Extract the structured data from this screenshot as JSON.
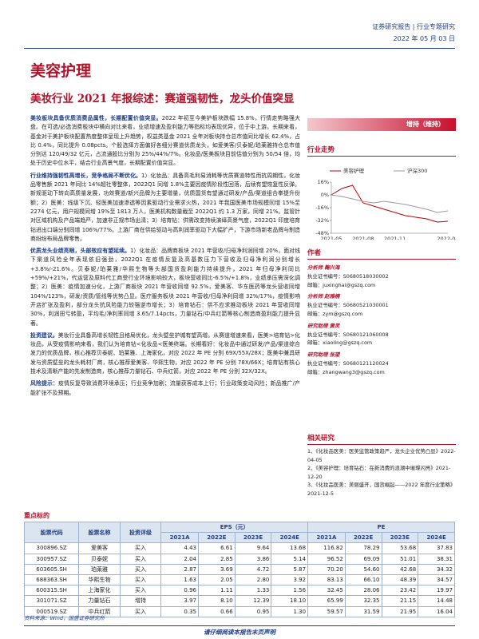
{
  "header": {
    "report_type": "证券研究报告 | 行业专题研究",
    "date": "2022 年 05 月 03 日"
  },
  "section": "美容护理",
  "title": "美妆行业 2021 年报综述：赛道强韧性，龙头价值突显",
  "summary": [
    {
      "lead": "美妆板块具备优质消费品属性，长期配置价值突显。",
      "body": "2022 年初至今美护板块跌幅 15.8%，行情走势略强大盘。在可选/必选消费板块中横向对比来看，业绩增速及盈利能力等指标均表现优异，位于中上游。长期来看，基金对于美护板块配置热度整体呈现上升趋势，权益类基金 2021 全年对板块持仓总市值同比增长 62.4%，占比 0.4%，同比提升 0.08pcts。个股选择方面偏好各细分赛道优质龙头，如爱美客/贝泰妮/珀莱雅持仓总市值分别达 120/49/32 亿元，占流通股比分别为 25%/44%/7%。化妆品/医美板块目前估值分别为 50/54 倍，均处于历史中位水平，结合行业高景气度，长期配置价值突显。"
    },
    {
      "lead": "行业维持强韧性高增长，竞争格局不断优化。",
      "body": "1）化妆品：具备高毛利易消耗等优质赛道特性而抗周期性，化妆品零售额 2021 年同比 14%超社零整体，2022Q1 同增 1.8%主要因疫情阶段性回落，后续有望恢复性反弹。新规驱动下转向高质量发展，功效赛道/新兴品牌为主要增量，优质国货有望通过研发/产品/渠道组合拳提升份额；2）医美：线级下沉、轻医美加速渗透等因素驱动行业需求火热，2021 年我国医美市场规模同增 15%至 2274 亿元，用户规模同增 19%至 1813 万人，医美机构数量截至 2022Q1 约 1.3 万家，同增 21%。监管针对区域机构及产品端趋严，加速非正规市场出清；3）培育钻：供需改变持续演绎高景气度，2022Q1 印度培育钻进出口端分别同增 106%/77%。上游厂商在供给驱动与高利润率驱动下大幅扩产，下游市场新老品牌与制造商纷纷布局品牌零售。"
    },
    {
      "lead": "优质龙头业绩亮眼，头部效应有望延续。",
      "body": "1）化妆品：品牌商板块 2021 年营收/归母净利润同增 20%，面对线下渠道风险全年表现依旧强劲，2022Q1 在疫情反复及高基数压力下营收及归母净利润分别增长+3.8%/-21.6%。贝泰妮/珀莱雅/华熙生物等头部国货盈利能力持续提升，2021 年归母净利同比+59%/+21%，代运营及原料代工商受行业环境影响较大，板块营收同比-6.5%/+1.8%，业绩承压需深化调整；2）医美：疫情加速分化，上游厂商板块 2021 年营收同增 92.5%，爱美客、华东医药等龙头营收同增 104%/123%，研发/资质/管线等优势凸显。医疗服务板块 2021 年营收/归母净利同增 32%/17%，疫情影响开店扩张及盈利，部分龙头抗风险能力较强逆市增长；3）培育钻石：供不应求推动板块 2021 年营收同增 30%，利润扭亏转盈，平均毛/净利率同增 3.65/7.14pcts，力量钻石/中兵红箭等核心制造商盈利能力提升显著。"
    },
    {
      "lead": "投资建议。",
      "body": "美妆行业具备高增长韧性且格局优化，龙头壁垒护城有望高增。从赛道增速来看，医美>培育钻>化妆品，从受疫情影响来看，我们认为培育钻<化妆品<医美终端。长期看好：化妆品中通过研发/产品/渠道综合发力的优质品牌，核心推荐贝泰妮、珀莱雅、上海家化，对应 2022 年 PE 分别 69X/55X/28X；医美中兼具研发与资质壁垒的龙头耗材厂商，核心推荐爱美客、华熙生物，对应 2022 年 PE 分别 78X/66X；培育钻有核心技术及清晰产能的先发制造商，核心推荐力量钻石、中兵红箭，对应 2022 年 PE 分别 32X/32X。"
    },
    {
      "lead": "风险提示：",
      "body": "疫情反复导致消费环境承压；行业竞争加剧；流量获客成本上行；行业政策变动风险；新品推广/产能扩张不及预期。"
    }
  ],
  "rating": "增持（维持）",
  "trend": {
    "title": "行业走势",
    "type": "line",
    "categories": [
      "2021-05",
      null,
      null,
      "2021-08",
      null,
      null,
      "2021-11",
      null,
      null,
      null,
      null,
      "2022-04"
    ],
    "series": [
      {
        "name": "美容护理",
        "color": "#c00000",
        "values": [
          0,
          8,
          12,
          -10,
          -14,
          -18,
          -22,
          -26,
          -28,
          -30,
          -34,
          -33
        ]
      },
      {
        "name": "沪深300",
        "color": "#9a9a9a",
        "values": [
          0,
          -2,
          -5,
          -8,
          -10,
          -8,
          -10,
          -12,
          -15,
          -18,
          -22,
          -20
        ]
      }
    ],
    "ylim": [
      -48,
      16
    ],
    "yticks": [
      {
        "value": 16,
        "label": "16%"
      },
      {
        "value": 0,
        "label": "0%"
      },
      {
        "value": -16,
        "label": "-16%"
      },
      {
        "value": -32,
        "label": "-32%"
      },
      {
        "value": -48,
        "label": "-48%"
      }
    ]
  },
  "authors": {
    "title": "作者",
    "items": [
      {
        "role": "分析师",
        "name": "鞠兴海",
        "license": "执业证书编号：S0680518030002",
        "email": "邮箱：juxinghai@gszq.com"
      },
      {
        "role": "分析师",
        "name": "赵雅楠",
        "license": "执业证书编号：S0680521030001",
        "email": "邮箱：zym@gszq.com"
      },
      {
        "role": "研究助理",
        "name": "黄灵",
        "license": "执业证书编号：S0680121060008",
        "email": "邮箱：xiaoling@gszq.com"
      },
      {
        "role": "研究助理",
        "name": "张望",
        "license": "执业证书编号：S0680121120024",
        "email": "邮箱：zhangwang3@gszq.com"
      }
    ]
  },
  "related": {
    "title": "相关研究",
    "items": [
      "1、《化妆品医美：医美监管政策趋严，龙头企业优势凸显》2022-04-05",
      "2、《美容护理：培育钻石：在新消费的浪潮中璀璨闪亮》2021-12-20",
      "3、《化妆品医美：美丽盛开，国货崛起——2022 年度行业策略》2021-12-5"
    ]
  },
  "table": {
    "title": "重点标的",
    "headers": [
      "股票代码",
      "股票名称",
      "投资评级"
    ],
    "eps_header": "EPS（元）",
    "pe_header": "PE",
    "years": [
      "2021A",
      "2022E",
      "2023E",
      "2024E"
    ],
    "rows": [
      [
        "300896.SZ",
        "爱美客",
        "买入",
        "4.43",
        "6.61",
        "9.64",
        "13.68",
        "116.82",
        "78.29",
        "53.68",
        "37.83"
      ],
      [
        "300957.SZ",
        "贝泰妮",
        "买入",
        "2.04",
        "2.85",
        "3.86",
        "5.14",
        "96.52",
        "69.09",
        "51.01",
        "38.31"
      ],
      [
        "603605.SH",
        "珀莱雅",
        "买入",
        "2.87",
        "3.69",
        "4.72",
        "5.87",
        "70.20",
        "54.60",
        "42.68",
        "34.32"
      ],
      [
        "688363.SH",
        "华熙生物",
        "买入",
        "1.63",
        "2.05",
        "2.80",
        "3.92",
        "83.13",
        "66.10",
        "48.39",
        "34.57"
      ],
      [
        "600315.SH",
        "上海家化",
        "买入",
        "0.96",
        "1.11",
        "1.33",
        "1.56",
        "32.45",
        "28.06",
        "23.42",
        "19.97"
      ],
      [
        "301071.SZ",
        "力量钻石",
        "增持",
        "3.97",
        "8.10",
        "12.39",
        "18.10",
        "65.99",
        "32.35",
        "21.15",
        "14.48"
      ],
      [
        "000519.SZ",
        "中兵红箭",
        "买入",
        "0.35",
        "0.66",
        "0.95",
        "1.30",
        "59.57",
        "31.59",
        "21.95",
        "16.04"
      ]
    ],
    "source": "资料来源：Wind，国盛证券研究所"
  },
  "footer": "请仔细阅读本报告末页声明"
}
